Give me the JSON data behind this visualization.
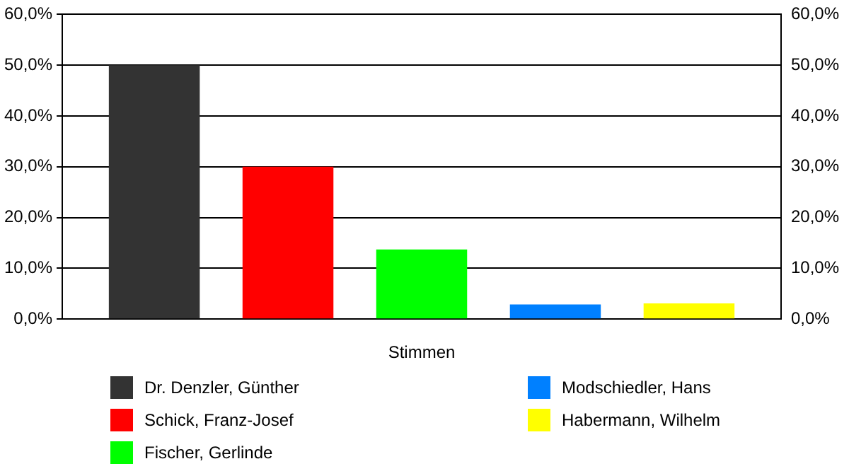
{
  "chart_data": {
    "type": "bar",
    "categories": [
      "Stimmen"
    ],
    "series": [
      {
        "name": "Dr. Denzler, Günther",
        "color": "#333333",
        "values": [
          50.0
        ]
      },
      {
        "name": "Schick, Franz-Josef",
        "color": "#ff0000",
        "values": [
          30.0
        ]
      },
      {
        "name": "Fischer, Gerlinde",
        "color": "#00ff00",
        "values": [
          13.7
        ]
      },
      {
        "name": "Modschiedler, Hans",
        "color": "#0080ff",
        "values": [
          2.9
        ]
      },
      {
        "name": "Habermann, Wilhelm",
        "color": "#ffff00",
        "values": [
          3.1
        ]
      }
    ],
    "ylim": [
      0,
      60
    ],
    "yticks": [
      {
        "value": 0,
        "label": "0,0%"
      },
      {
        "value": 10,
        "label": "10,0%"
      },
      {
        "value": 20,
        "label": "20,0%"
      },
      {
        "value": 30,
        "label": "30,0%"
      },
      {
        "value": 40,
        "label": "40,0%"
      },
      {
        "value": 50,
        "label": "50,0%"
      },
      {
        "value": 60,
        "label": "60,0%"
      }
    ],
    "grid": "y",
    "legend": "bottom"
  }
}
